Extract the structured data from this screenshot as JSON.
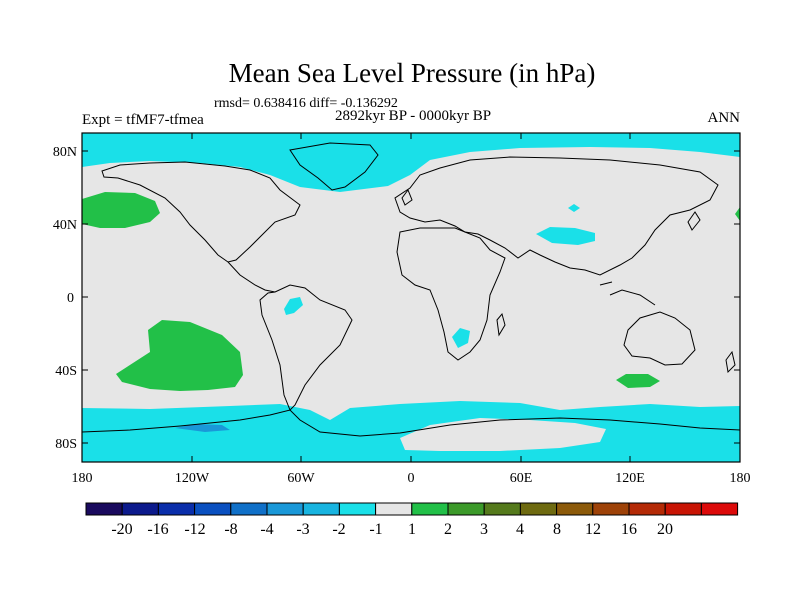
{
  "title": "Mean Sea Level Pressure (in hPa)",
  "stats": "rmsd= 0.638416 diff= -0.136292",
  "period": "2892kyr BP - 0000kyr BP",
  "experiment": "Expt = tfMF7-tfmea",
  "season": "ANN",
  "map": {
    "lat_labels": [
      "80N",
      "40N",
      "0",
      "40S",
      "80S"
    ],
    "lon_labels": [
      "180",
      "120W",
      "60W",
      "0",
      "60E",
      "120E",
      "180"
    ]
  },
  "legend": {
    "colors": [
      "#1a0a5e",
      "#0c1a8c",
      "#0a2eaa",
      "#0a50c0",
      "#1070c8",
      "#1a98d8",
      "#18b4e0",
      "#1ae0e8",
      "#e6e6e6",
      "#22c048",
      "#3c9a2a",
      "#557a1c",
      "#6e6a10",
      "#8c5a0a",
      "#9e4208",
      "#b42a06",
      "#c81404",
      "#dc0a0a"
    ],
    "labels": [
      "-20",
      "-16",
      "-12",
      "-8",
      "-4",
      "-3",
      "-2",
      "-1",
      "1",
      "2",
      "3",
      "4",
      "8",
      "12",
      "16",
      "20"
    ]
  },
  "colors": {
    "background": "#e6e6e6",
    "cyan": "#1ae0e8",
    "green": "#22c048",
    "blue": "#1a98d8"
  }
}
